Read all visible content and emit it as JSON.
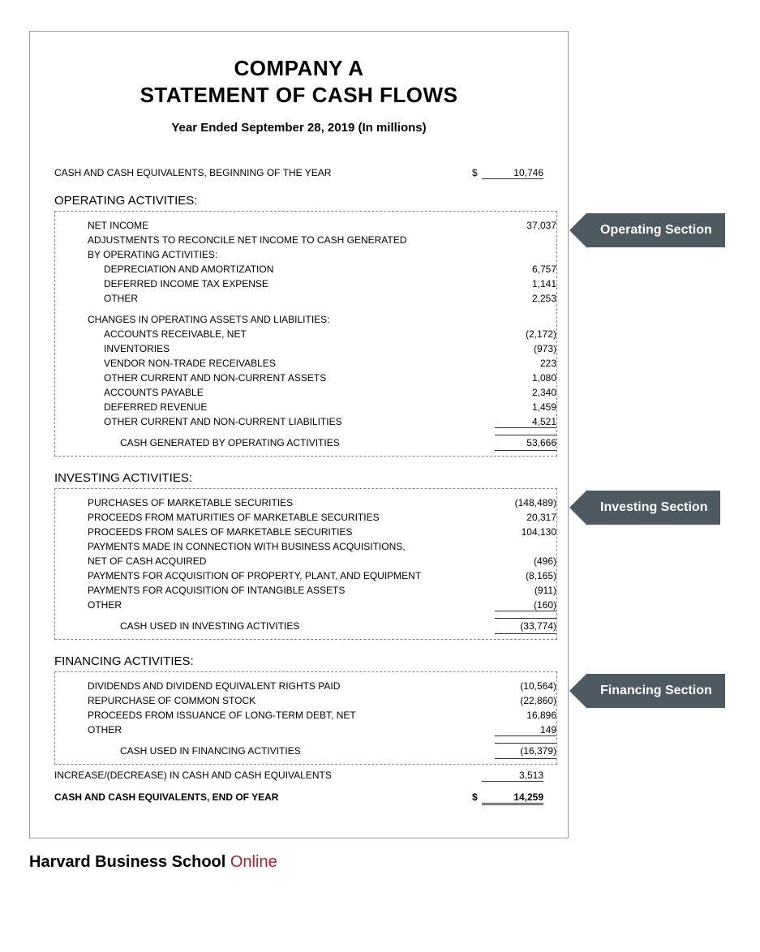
{
  "header": {
    "company": "COMPANY A",
    "title": "STATEMENT OF CASH FLOWS",
    "period": "Year Ended September 28, 2019 (In millions)"
  },
  "beginning": {
    "label": "CASH AND CASH EQUIVALENTS, BEGINNING OF THE YEAR",
    "currency": "$",
    "value": "10,746"
  },
  "operating": {
    "heading": "OPERATING ACTIVITIES:",
    "callout": "Operating Section",
    "net_income_label": "NET INCOME",
    "net_income": "37,037",
    "adj_label1": "ADJUSTMENTS TO RECONCILE NET INCOME TO CASH GENERATED",
    "adj_label2": "BY OPERATING ACTIVITIES:",
    "adjustments": [
      {
        "label": "DEPRECIATION AND AMORTIZATION",
        "value": "6,757"
      },
      {
        "label": "DEFERRED INCOME TAX EXPENSE",
        "value": "1,141"
      },
      {
        "label": "OTHER",
        "value": "2,253"
      }
    ],
    "changes_label": "CHANGES IN OPERATING ASSETS AND LIABILITIES:",
    "changes": [
      {
        "label": "ACCOUNTS RECEIVABLE, NET",
        "value": "(2,172)"
      },
      {
        "label": "INVENTORIES",
        "value": "(973)"
      },
      {
        "label": "VENDOR NON-TRADE RECEIVABLES",
        "value": "223"
      },
      {
        "label": "OTHER CURRENT AND NON-CURRENT ASSETS",
        "value": "1,080"
      },
      {
        "label": "ACCOUNTS PAYABLE",
        "value": "2,340"
      },
      {
        "label": "DEFERRED REVENUE",
        "value": "1,459"
      },
      {
        "label": "OTHER CURRENT AND NON-CURRENT LIABILITIES",
        "value": "4,521"
      }
    ],
    "total_label": "CASH GENERATED BY OPERATING ACTIVITIES",
    "total": "53,666"
  },
  "investing": {
    "heading": "INVESTING ACTIVITIES:",
    "callout": "Investing Section",
    "items": [
      {
        "label": "PURCHASES OF MARKETABLE SECURITIES",
        "value": "(148,489)"
      },
      {
        "label": "PROCEEDS FROM MATURITIES OF MARKETABLE SECURITIES",
        "value": "20,317"
      },
      {
        "label": "PROCEEDS FROM SALES OF MARKETABLE SECURITIES",
        "value": "104,130"
      },
      {
        "label": "PAYMENTS MADE IN CONNECTION WITH BUSINESS ACQUISITIONS,",
        "value": ""
      },
      {
        "label": "NET OF CASH ACQUIRED",
        "value": "(496)"
      },
      {
        "label": "PAYMENTS FOR ACQUISITION OF PROPERTY, PLANT, AND EQUIPMENT",
        "value": "(8,165)"
      },
      {
        "label": "PAYMENTS FOR ACQUISITION OF INTANGIBLE ASSETS",
        "value": "(911)"
      },
      {
        "label": "OTHER",
        "value": "(160)"
      }
    ],
    "total_label": "CASH USED IN INVESTING ACTIVITIES",
    "total": "(33,774)"
  },
  "financing": {
    "heading": "FINANCING ACTIVITIES:",
    "callout": "Financing Section",
    "items": [
      {
        "label": "DIVIDENDS AND DIVIDEND EQUIVALENT RIGHTS PAID",
        "value": "(10,564)"
      },
      {
        "label": "REPURCHASE OF COMMON STOCK",
        "value": "(22,860)"
      },
      {
        "label": "PROCEEDS FROM ISSUANCE OF LONG-TERM DEBT, NET",
        "value": "16,896"
      },
      {
        "label": "OTHER",
        "value": "149"
      }
    ],
    "total_label": "CASH USED IN FINANCING ACTIVITIES",
    "total": "(16,379)"
  },
  "increase": {
    "label": "INCREASE/(DECREASE) IN CASH AND CASH EQUIVALENTS",
    "value": "3,513"
  },
  "ending": {
    "label": "CASH AND CASH EQUIVALENTS, END OF YEAR",
    "currency": "$",
    "value": "14,259"
  },
  "footer": {
    "brand1": "Harvard Business School ",
    "brand2": "Online"
  },
  "style": {
    "callout_bg": "#4d5a62",
    "callout_color": "#ffffff",
    "border_color": "#999999",
    "dash_color": "#888888",
    "text_color": "#000000",
    "hbs_red": "#b01c2e"
  }
}
